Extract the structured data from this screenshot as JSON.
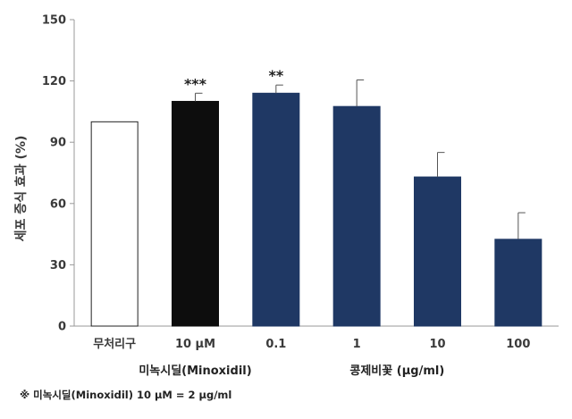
{
  "chart_data": {
    "type": "bar",
    "ylabel": "세포 증식 효과 (%)",
    "ylim": [
      0,
      150
    ],
    "yticks": [
      0,
      30,
      60,
      90,
      120,
      150
    ],
    "grid": false,
    "categories": [
      "무처리구",
      "10 μM",
      "0.1",
      "1",
      "10",
      "100"
    ],
    "values": [
      100,
      110,
      114,
      107.5,
      73,
      42.5
    ],
    "errors": [
      0,
      4,
      4,
      13,
      12,
      13
    ],
    "significance": [
      "",
      "***",
      "**",
      "",
      "",
      ""
    ],
    "bar_fill": [
      "#ffffff",
      "#0d0d0d",
      "#1f3864",
      "#1f3864",
      "#1f3864",
      "#1f3864"
    ],
    "groups": [
      {
        "label": "미녹시딜(Minoxidil)",
        "from": 1,
        "to": 1
      },
      {
        "label": "콩제비꽃 (μg/ml)",
        "from": 2,
        "to": 5
      }
    ]
  },
  "footnote": "※ 미녹시딜(Minoxidil) 10 μM = 2 μg/ml"
}
